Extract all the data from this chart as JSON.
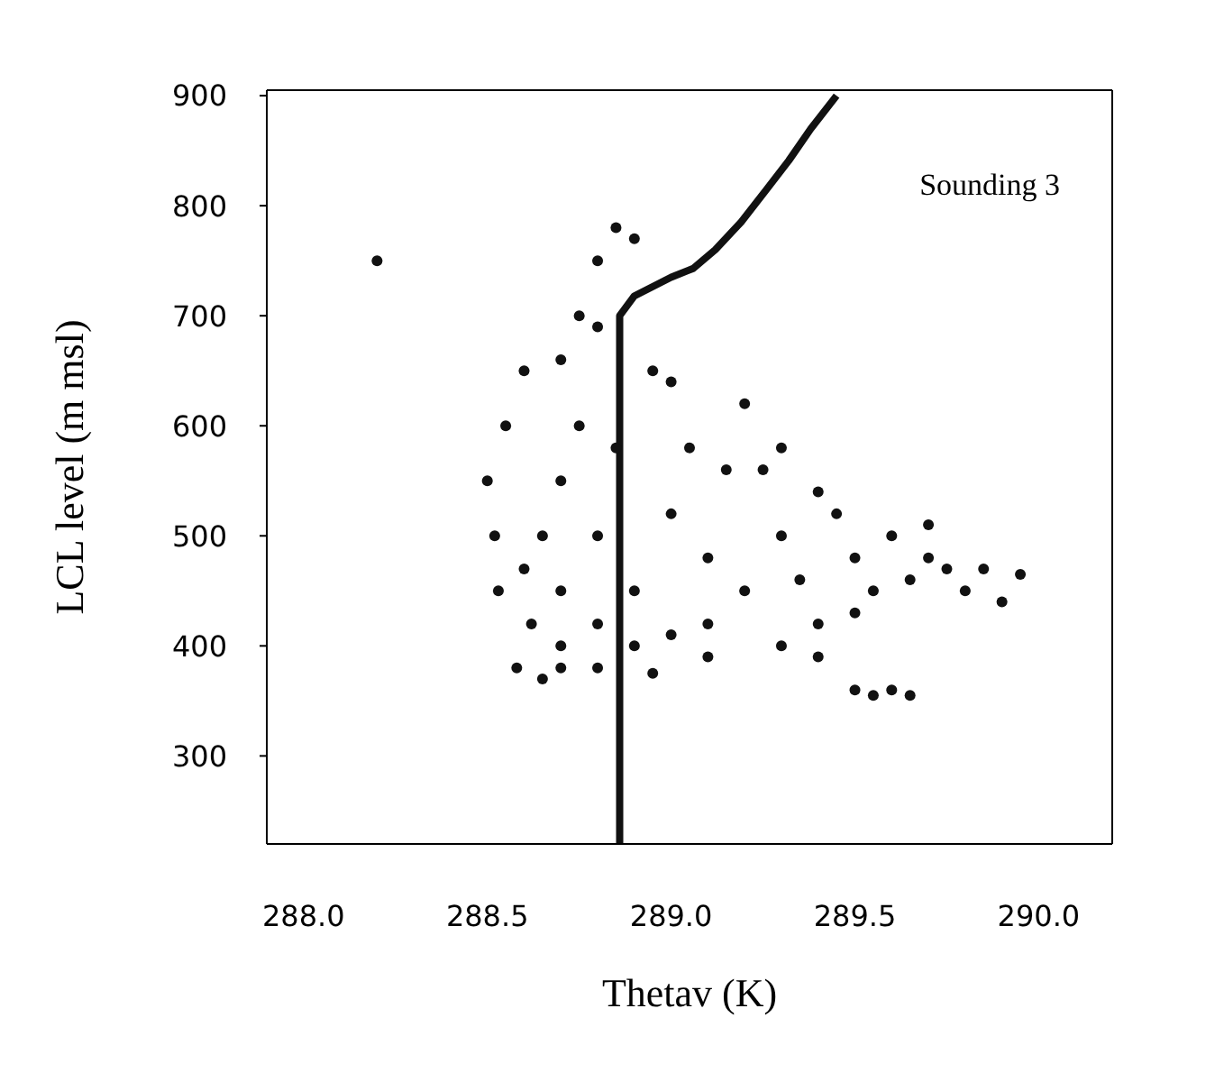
{
  "chart_data": {
    "type": "scatter",
    "xlabel": "Thetav (K)",
    "ylabel": "LCL level (m msl)",
    "xlim": [
      287.9,
      290.2
    ],
    "ylim": [
      220,
      905
    ],
    "xticks": [
      {
        "value": 288,
        "label": "288.0"
      },
      288.5,
      {
        "value": 289,
        "label": "289.0"
      },
      289.5,
      {
        "value": 290,
        "label": "290.0"
      }
    ],
    "yticks": [
      300,
      400,
      500,
      600,
      700,
      800,
      900
    ],
    "grid": false,
    "annotations": [
      "Sounding 3"
    ],
    "series": [
      {
        "color": "#111111",
        "x": [
          288.5,
          288.52,
          288.53,
          288.55,
          288.6,
          288.62,
          288.58,
          288.65,
          288.7,
          288.75,
          288.8,
          288.85,
          288.9,
          288.7,
          288.8,
          288.95,
          289.0,
          288.7,
          288.8,
          288.9,
          289.0,
          289.1,
          288.75,
          288.85,
          289.05,
          289.15,
          288.65,
          288.6,
          288.7,
          288.8,
          288.9,
          289.0,
          289.1,
          289.2,
          289.3,
          289.4,
          289.35,
          289.45,
          289.5,
          289.25,
          289.3,
          289.2,
          289.3,
          289.4,
          289.5,
          289.55,
          289.6,
          289.65,
          289.4,
          289.5,
          289.6,
          289.7,
          289.75,
          289.8,
          289.85,
          289.9,
          289.95,
          289.65,
          289.7,
          289.55,
          288.2,
          288.7,
          288.8,
          288.95,
          289.1
        ],
        "values": [
          550,
          500,
          450,
          600,
          650,
          420,
          380,
          370,
          400,
          700,
          750,
          780,
          770,
          660,
          690,
          650,
          640,
          550,
          500,
          450,
          520,
          480,
          600,
          580,
          580,
          560,
          500,
          470,
          450,
          420,
          400,
          410,
          420,
          450,
          500,
          540,
          460,
          520,
          480,
          560,
          580,
          620,
          400,
          390,
          360,
          355,
          360,
          355,
          420,
          430,
          500,
          480,
          470,
          450,
          470,
          440,
          465,
          460,
          510,
          450,
          750,
          380,
          380,
          375,
          390
        ]
      },
      {
        "type": "line",
        "color": "#111111",
        "x": [
          288.86,
          288.86,
          288.9,
          289.0,
          289.06,
          289.12,
          289.19,
          289.26,
          289.32,
          289.38,
          289.45
        ],
        "values": [
          220,
          700,
          718,
          735,
          743,
          760,
          785,
          815,
          841,
          870,
          900
        ]
      }
    ]
  }
}
